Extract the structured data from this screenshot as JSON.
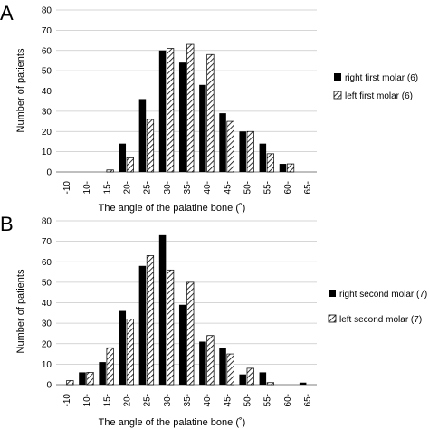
{
  "colors": {
    "solid": "#000000",
    "hatch": "#000000",
    "grid": "#c8c8c8",
    "axis": "#7f7f7f"
  },
  "chart_data": [
    {
      "panel_label": "A",
      "type": "bar",
      "categories": [
        "-10",
        "10-",
        "15-",
        "20-",
        "25-",
        "30-",
        "35-",
        "40-",
        "45-",
        "50-",
        "55-",
        "60-",
        "65-"
      ],
      "series": [
        {
          "name": "right first molar (6)",
          "style": "solid",
          "values": [
            0,
            0,
            0,
            14,
            36,
            60,
            54,
            43,
            29,
            20,
            14,
            4,
            0
          ]
        },
        {
          "name": "left first molar (6)",
          "style": "hatched",
          "values": [
            0,
            0,
            1,
            7,
            26,
            61,
            63,
            58,
            25,
            20,
            9,
            4,
            0
          ]
        }
      ],
      "xlabel": "The angle of the palatine bone (˚)",
      "ylabel": "Number of patients",
      "ylim": [
        0,
        80
      ],
      "yticks": [
        0,
        10,
        20,
        30,
        40,
        50,
        60,
        70,
        80
      ],
      "grid": true,
      "legend": "right"
    },
    {
      "panel_label": "B",
      "type": "bar",
      "categories": [
        "-10",
        "10-",
        "15-",
        "20-",
        "25-",
        "30-",
        "35-",
        "40-",
        "45-",
        "50-",
        "55-",
        "60-",
        "65-"
      ],
      "series": [
        {
          "name": "right second molar (7)",
          "style": "solid",
          "values": [
            0,
            6,
            11,
            36,
            58,
            73,
            39,
            21,
            18,
            5,
            6,
            0,
            1
          ]
        },
        {
          "name": "left second molar (7)",
          "style": "hatched",
          "values": [
            2,
            6,
            18,
            32,
            63,
            56,
            50,
            24,
            15,
            8,
            1,
            0,
            0
          ]
        }
      ],
      "xlabel": "The angle of the palatine bone (˚)",
      "ylabel": "Number of patients",
      "ylim": [
        0,
        80
      ],
      "yticks": [
        0,
        10,
        20,
        30,
        40,
        50,
        60,
        70,
        80
      ],
      "grid": true,
      "legend": "right"
    }
  ]
}
